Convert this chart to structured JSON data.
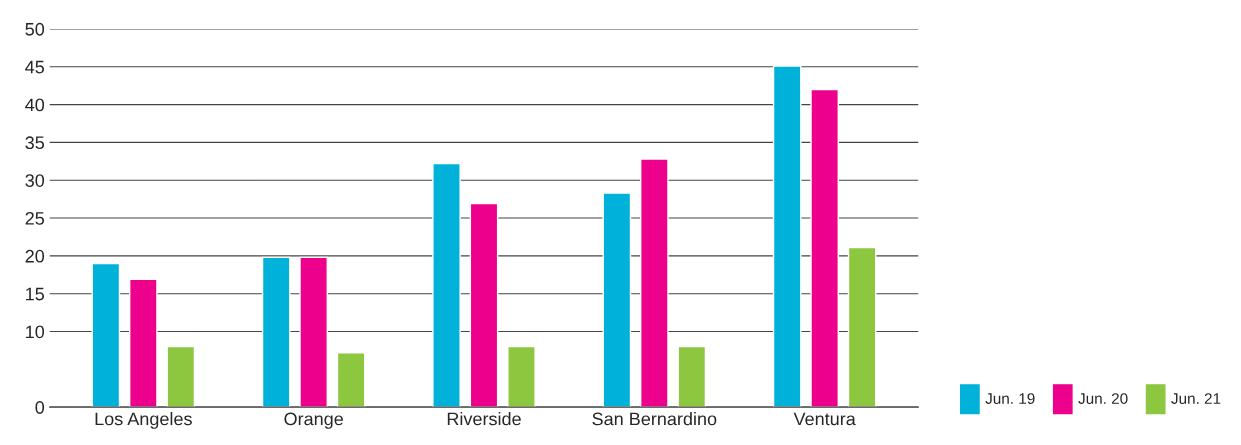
{
  "chart_data": {
    "type": "bar",
    "categories": [
      "Los Angeles",
      "Orange",
      "Riverside",
      "San Bernardino",
      "Ventura"
    ],
    "series": [
      {
        "name": "Jun. 19",
        "color": "#00b2d9",
        "values": [
          19.0,
          19.8,
          32.2,
          28.3,
          45.1
        ]
      },
      {
        "name": "Jun. 20",
        "color": "#ec008c",
        "values": [
          16.9,
          19.8,
          26.9,
          32.8,
          42.0
        ]
      },
      {
        "name": "Jun. 21",
        "color": "#8dc63f",
        "values": [
          8.0,
          7.2,
          8.0,
          8.0,
          21.1
        ]
      }
    ],
    "ylim": [
      0,
      50
    ],
    "yticks": [
      0,
      10,
      15,
      20,
      25,
      30,
      35,
      40,
      45,
      50
    ],
    "grid": "y",
    "legend": "bottom right"
  }
}
